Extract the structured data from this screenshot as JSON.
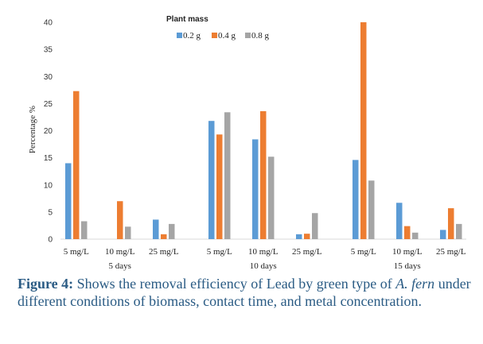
{
  "chart_data": {
    "type": "bar",
    "ylabel": "Percentage %",
    "ylim": [
      0,
      40
    ],
    "yticks": [
      0,
      5,
      10,
      15,
      20,
      25,
      30,
      35,
      40
    ],
    "legend_title": "Plant mass",
    "legend_position": "top-center",
    "grid": false,
    "groups": [
      {
        "label": "5 days",
        "categories": [
          {
            "label": "5 mg/L",
            "values": [
              14,
              27.3,
              3.3
            ]
          },
          {
            "label": "10 mg/L",
            "values": [
              0,
              7,
              2.3
            ]
          },
          {
            "label": "25 mg/L",
            "values": [
              3.6,
              0.9,
              2.8
            ]
          }
        ]
      },
      {
        "label": "10 days",
        "categories": [
          {
            "label": "5 mg/L",
            "values": [
              21.8,
              19.3,
              23.4
            ]
          },
          {
            "label": "10 mg/L",
            "values": [
              18.4,
              23.6,
              15.2
            ]
          },
          {
            "label": "25 mg/L",
            "values": [
              0.9,
              1,
              4.8
            ]
          }
        ]
      },
      {
        "label": "15 days",
        "categories": [
          {
            "label": "5 mg/L",
            "values": [
              14.6,
              40,
              10.8
            ]
          },
          {
            "label": "10 mg/L",
            "values": [
              6.7,
              2.4,
              1.2
            ]
          },
          {
            "label": "25 mg/L",
            "values": [
              1.7,
              5.7,
              2.8
            ]
          }
        ]
      }
    ],
    "series": [
      {
        "name": "0.2 g",
        "color": "#5b9bd5"
      },
      {
        "name": "0.4 g",
        "color": "#ed7d31"
      },
      {
        "name": "0.8 g",
        "color": "#a5a5a5"
      }
    ]
  },
  "caption": {
    "lead": "Figure 4:",
    "text": " Shows the removal efficiency of Lead by green  type of ",
    "italic": "A. fern",
    "rest": " under different conditions of biomass, contact time, and metal concentration."
  }
}
